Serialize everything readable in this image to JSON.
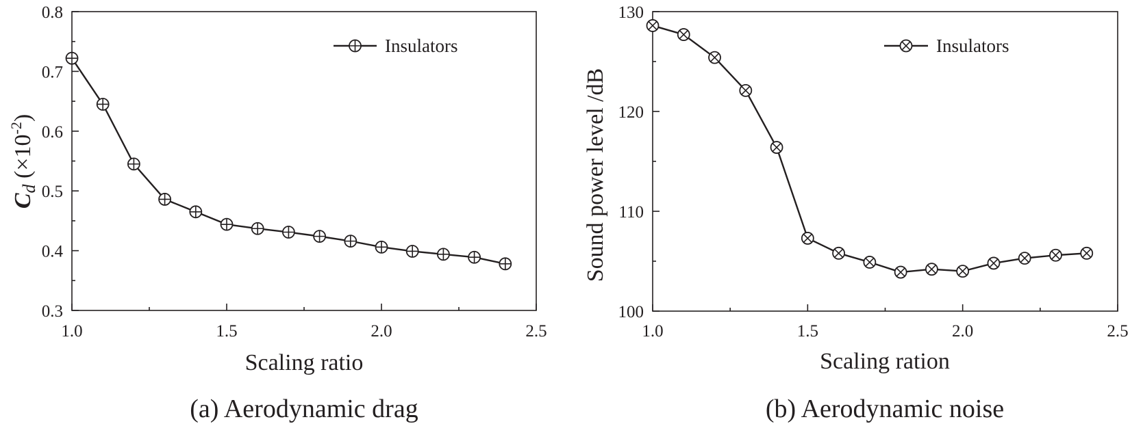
{
  "chart_data": [
    {
      "type": "line",
      "id": "a",
      "caption": "(a) Aerodynamic drag",
      "xlabel": "Scaling ratio",
      "ylabel_main": "C",
      "ylabel_sub": "d",
      "ylabel_rest": " (×10",
      "ylabel_sup": "-2",
      "ylabel_close": ")",
      "xlim": [
        1.0,
        2.5
      ],
      "ylim": [
        0.3,
        0.8
      ],
      "xticks": [
        1.0,
        1.5,
        2.0,
        2.5
      ],
      "xtick_labels": [
        "1.0",
        "1.5",
        "2.0",
        "2.5"
      ],
      "yticks": [
        0.3,
        0.4,
        0.5,
        0.6,
        0.7,
        0.8
      ],
      "ytick_labels": [
        "0.3",
        "0.4",
        "0.5",
        "0.6",
        "0.7",
        "0.8"
      ],
      "legend_position": "top-right",
      "marker": "circle-plus",
      "series": [
        {
          "name": "Insulators",
          "x": [
            1.0,
            1.1,
            1.2,
            1.3,
            1.4,
            1.5,
            1.6,
            1.7,
            1.8,
            1.9,
            2.0,
            2.1,
            2.2,
            2.3,
            2.4
          ],
          "values": [
            0.722,
            0.645,
            0.545,
            0.486,
            0.465,
            0.444,
            0.437,
            0.431,
            0.424,
            0.416,
            0.406,
            0.399,
            0.394,
            0.389,
            0.378
          ]
        }
      ]
    },
    {
      "type": "line",
      "id": "b",
      "caption": "(b) Aerodynamic noise",
      "xlabel": "Scaling ration",
      "ylabel": "Sound power level  /dB",
      "xlim": [
        1.0,
        2.5
      ],
      "ylim": [
        100,
        130
      ],
      "xticks": [
        1.0,
        1.5,
        2.0,
        2.5
      ],
      "xtick_labels": [
        "1.0",
        "1.5",
        "2.0",
        "2.5"
      ],
      "yticks": [
        100,
        110,
        120,
        130
      ],
      "ytick_labels": [
        "100",
        "110",
        "120",
        "130"
      ],
      "legend_position": "top-right",
      "marker": "circle-x",
      "series": [
        {
          "name": "Insulators",
          "x": [
            1.0,
            1.1,
            1.2,
            1.3,
            1.4,
            1.5,
            1.6,
            1.7,
            1.8,
            1.9,
            2.0,
            2.1,
            2.2,
            2.3,
            2.4
          ],
          "values": [
            128.6,
            127.7,
            125.4,
            122.1,
            116.4,
            107.3,
            105.8,
            104.9,
            103.9,
            104.2,
            104.0,
            104.8,
            105.3,
            105.6,
            105.8
          ]
        }
      ]
    }
  ]
}
